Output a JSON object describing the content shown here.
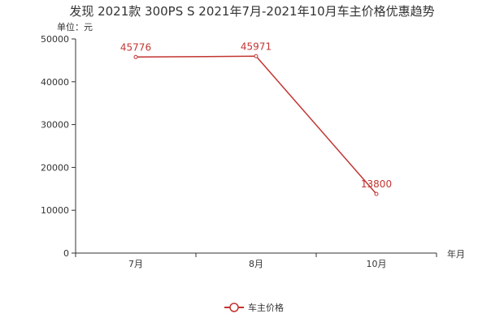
{
  "chart_data": {
    "type": "line",
    "title": "发现 2021款 300PS S 2021年7月-2021年10月车主价格优惠趋势",
    "y_unit_label": "单位：元",
    "xlabel": "年月",
    "ylabel": "",
    "categories": [
      "7月",
      "8月",
      "10月"
    ],
    "ylim": [
      0,
      50000
    ],
    "y_ticks": [
      0,
      10000,
      20000,
      30000,
      40000,
      50000
    ],
    "grid": false,
    "legend_position": "bottom",
    "series": [
      {
        "name": "车主价格",
        "values": [
          45776,
          45971,
          13800
        ],
        "data_labels": [
          "45776",
          "45971",
          "13800"
        ],
        "color": "#c23531"
      }
    ]
  },
  "colors": {
    "axis": "#333333",
    "text": "#333333",
    "series": "#c23531"
  }
}
